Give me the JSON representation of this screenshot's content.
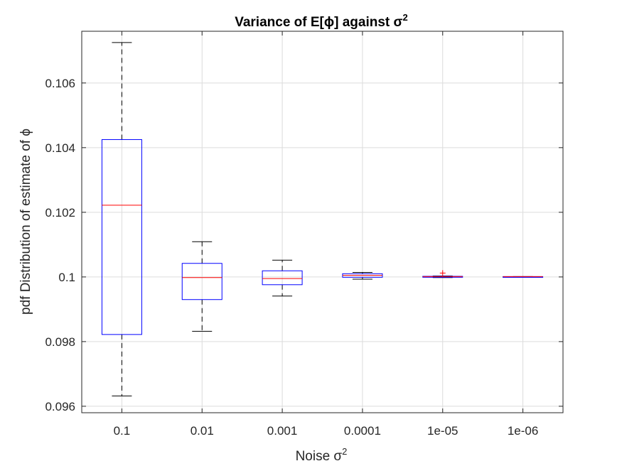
{
  "chart_data": {
    "type": "box",
    "title": "Variance of E[ϕ] against σ",
    "title_superscript": "2",
    "xlabel": "Noise σ",
    "xlabel_superscript": "2",
    "ylabel": "pdf Distribution of estimate of ϕ",
    "categories": [
      "0.1",
      "0.01",
      "0.001",
      "0.0001",
      "1e-05",
      "1e-06"
    ],
    "ylim": [
      0.0958,
      0.1076
    ],
    "yticks": [
      0.096,
      0.098,
      0.1,
      0.102,
      0.104,
      0.106
    ],
    "ytick_labels": [
      "0.096",
      "0.098",
      "0.1",
      "0.102",
      "0.104",
      "0.106"
    ],
    "grid": true,
    "boxes": [
      {
        "category": "0.1",
        "whisker_low": 0.09632,
        "q1": 0.09822,
        "median": 0.10222,
        "q3": 0.10425,
        "whisker_high": 0.10725
      },
      {
        "category": "0.01",
        "whisker_low": 0.09832,
        "q1": 0.0993,
        "median": 0.09998,
        "q3": 0.10042,
        "whisker_high": 0.10109
      },
      {
        "category": "0.001",
        "whisker_low": 0.09941,
        "q1": 0.09976,
        "median": 0.09995,
        "q3": 0.10019,
        "whisker_high": 0.10052
      },
      {
        "category": "0.0001",
        "whisker_low": 0.09993,
        "q1": 0.09999,
        "median": 0.10005,
        "q3": 0.1001,
        "whisker_high": 0.10014
      },
      {
        "category": "1e-05",
        "whisker_low": 0.09998,
        "q1": 0.09999,
        "median": 0.10001,
        "q3": 0.10002,
        "whisker_high": 0.10003,
        "outliers": [
          0.10012
        ]
      },
      {
        "category": "1e-06",
        "whisker_low": 0.1,
        "q1": 0.1,
        "median": 0.10001,
        "q3": 0.10001,
        "whisker_high": 0.10001
      }
    ],
    "colors": {
      "box": "#0000ff",
      "median": "#ff0000",
      "whisker": "#000000",
      "outlier": "#ff0000"
    }
  }
}
